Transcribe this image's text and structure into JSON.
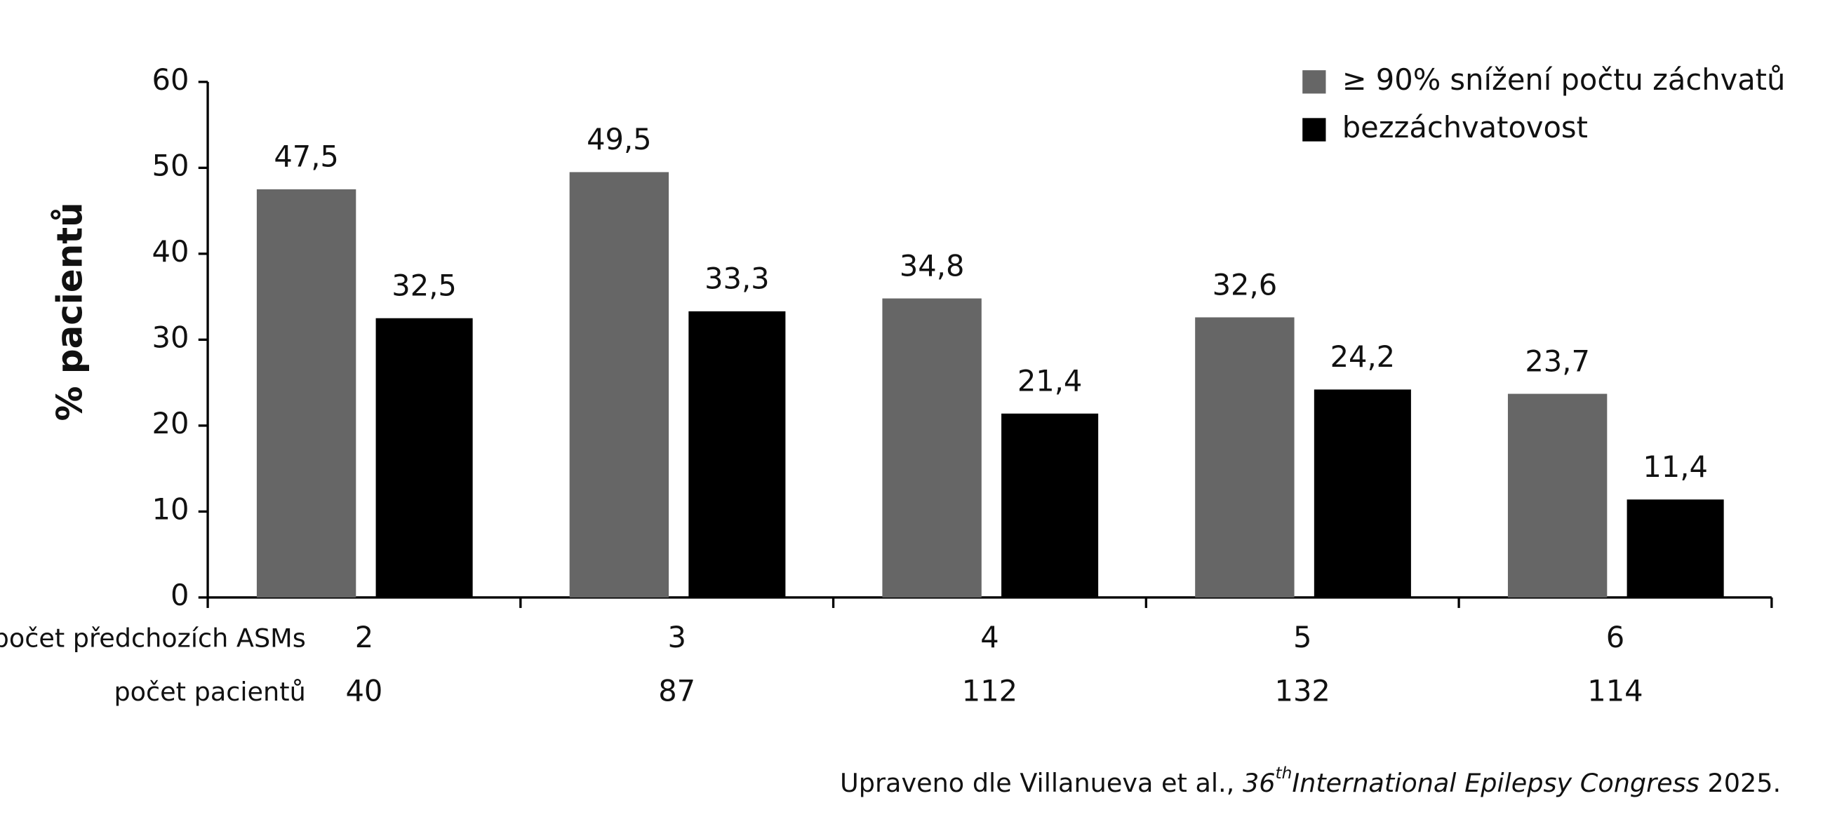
{
  "chart_data": {
    "type": "bar",
    "y_label": "% pacientů",
    "row_labels": [
      "počet předchozích ASMs",
      "počet pacientů"
    ],
    "categories": [
      "2",
      "3",
      "4",
      "5",
      "6"
    ],
    "patients": [
      40,
      87,
      112,
      132,
      114
    ],
    "series": [
      {
        "name": "≥ 90% snížení počtu záchvatů",
        "color": "#666666",
        "values": [
          47.5,
          49.5,
          34.8,
          32.6,
          23.7
        ],
        "value_labels": [
          "47,5",
          "49,5",
          "34,8",
          "32,6",
          "23,7"
        ]
      },
      {
        "name": "bezzáchvatovost",
        "color": "#000000",
        "values": [
          32.5,
          33.3,
          21.4,
          24.2,
          11.4
        ],
        "value_labels": [
          "32,5",
          "33,3",
          "21,4",
          "24,2",
          "11,4"
        ]
      }
    ],
    "ylim": [
      0,
      60
    ],
    "yticks": [
      0,
      10,
      20,
      30,
      40,
      50,
      60
    ],
    "legend": "top-right",
    "source": {
      "text": "Upraveno dle Villanueva et al., ",
      "number": "36",
      "sup": "th",
      "italic": "International Epilepsy Congress",
      "end": " 2025."
    }
  }
}
